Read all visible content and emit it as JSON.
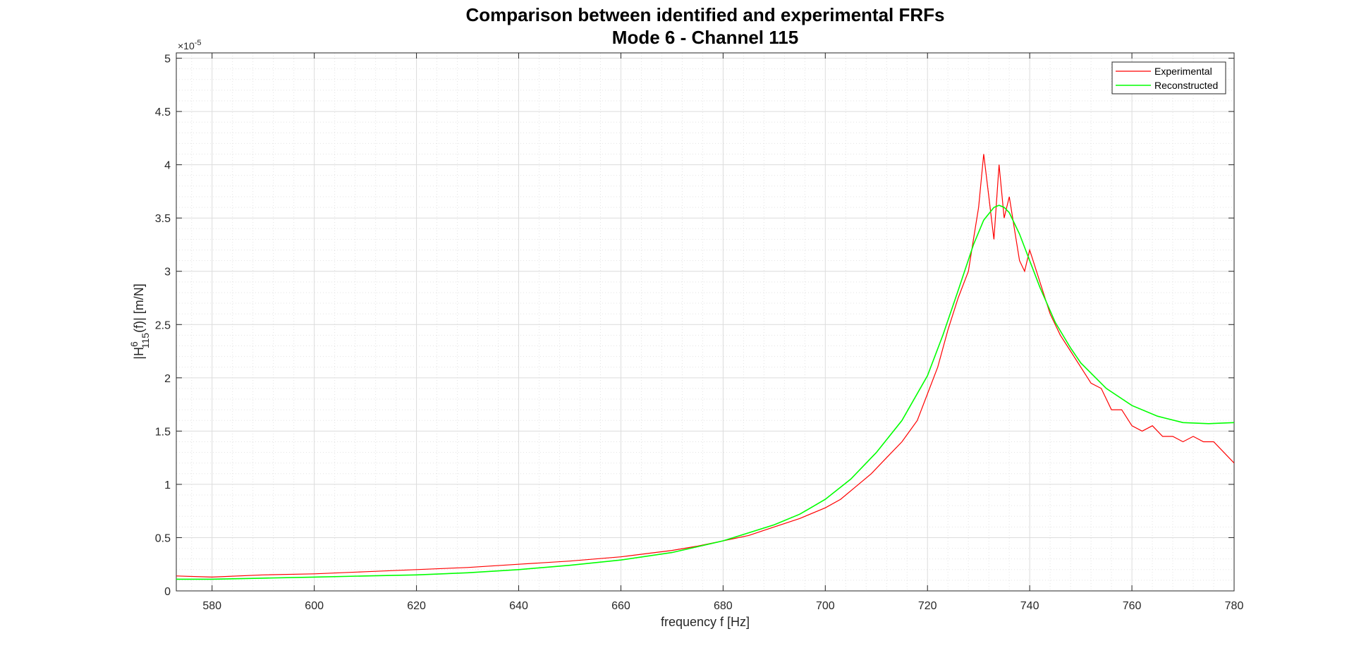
{
  "chart_data": {
    "type": "line",
    "title": "Comparison between identified and experimental FRFs",
    "subtitle": "Mode 6 - Channel 115",
    "xlabel": "frequency f [Hz]",
    "ylabel_main": "|H",
    "ylabel_sup": "6",
    "ylabel_sub": "115",
    "ylabel_rest": "(f)|   [m/N]",
    "y_exponent_base": "×10",
    "y_exponent_power": "-5",
    "xlim": [
      573,
      780
    ],
    "ylim": [
      0,
      5.05
    ],
    "xticks": [
      580,
      600,
      620,
      640,
      660,
      680,
      700,
      720,
      740,
      760,
      780
    ],
    "yticks": [
      0,
      0.5,
      1,
      1.5,
      2,
      2.5,
      3,
      3.5,
      4,
      4.5,
      5
    ],
    "ytick_labels": [
      "0",
      "0.5",
      "1",
      "1.5",
      "2",
      "2.5",
      "3",
      "3.5",
      "4",
      "4.5",
      "5"
    ],
    "grid": true,
    "minor_grid": true,
    "legend_position": "top-right",
    "series": [
      {
        "name": "Experimental",
        "color": "#ff0000",
        "x": [
          573,
          580,
          590,
          600,
          610,
          620,
          630,
          640,
          650,
          660,
          665,
          670,
          675,
          680,
          685,
          690,
          695,
          700,
          703,
          706,
          709,
          712,
          715,
          718,
          720,
          722,
          724,
          726,
          728,
          729,
          730,
          731,
          732,
          733,
          734,
          735,
          736,
          737,
          738,
          739,
          740,
          742,
          744,
          746,
          748,
          750,
          752,
          754,
          756,
          758,
          760,
          762,
          764,
          766,
          768,
          770,
          772,
          774,
          776,
          778,
          780
        ],
        "values": [
          0.14,
          0.13,
          0.15,
          0.16,
          0.18,
          0.2,
          0.22,
          0.25,
          0.28,
          0.32,
          0.35,
          0.38,
          0.42,
          0.47,
          0.52,
          0.6,
          0.68,
          0.78,
          0.86,
          0.98,
          1.1,
          1.25,
          1.4,
          1.6,
          1.85,
          2.1,
          2.45,
          2.75,
          3.0,
          3.3,
          3.6,
          4.1,
          3.7,
          3.3,
          4.0,
          3.5,
          3.7,
          3.4,
          3.1,
          3.0,
          3.2,
          2.9,
          2.6,
          2.4,
          2.25,
          2.1,
          1.95,
          1.9,
          1.7,
          1.7,
          1.55,
          1.5,
          1.55,
          1.45,
          1.45,
          1.4,
          1.45,
          1.4,
          1.4,
          1.3,
          1.2
        ]
      },
      {
        "name": "Reconstructed",
        "color": "#00ff00",
        "x": [
          573,
          580,
          590,
          600,
          610,
          620,
          630,
          640,
          650,
          660,
          670,
          680,
          690,
          695,
          700,
          705,
          710,
          715,
          720,
          723,
          726,
          729,
          731,
          733,
          734,
          735,
          736,
          738,
          740,
          742,
          745,
          748,
          750,
          755,
          760,
          765,
          770,
          775,
          780
        ],
        "values": [
          0.11,
          0.11,
          0.12,
          0.13,
          0.14,
          0.15,
          0.17,
          0.2,
          0.24,
          0.29,
          0.36,
          0.47,
          0.62,
          0.72,
          0.86,
          1.05,
          1.3,
          1.6,
          2.02,
          2.4,
          2.82,
          3.25,
          3.48,
          3.6,
          3.62,
          3.6,
          3.55,
          3.35,
          3.1,
          2.85,
          2.52,
          2.28,
          2.14,
          1.9,
          1.74,
          1.64,
          1.58,
          1.57,
          1.58
        ]
      }
    ]
  }
}
